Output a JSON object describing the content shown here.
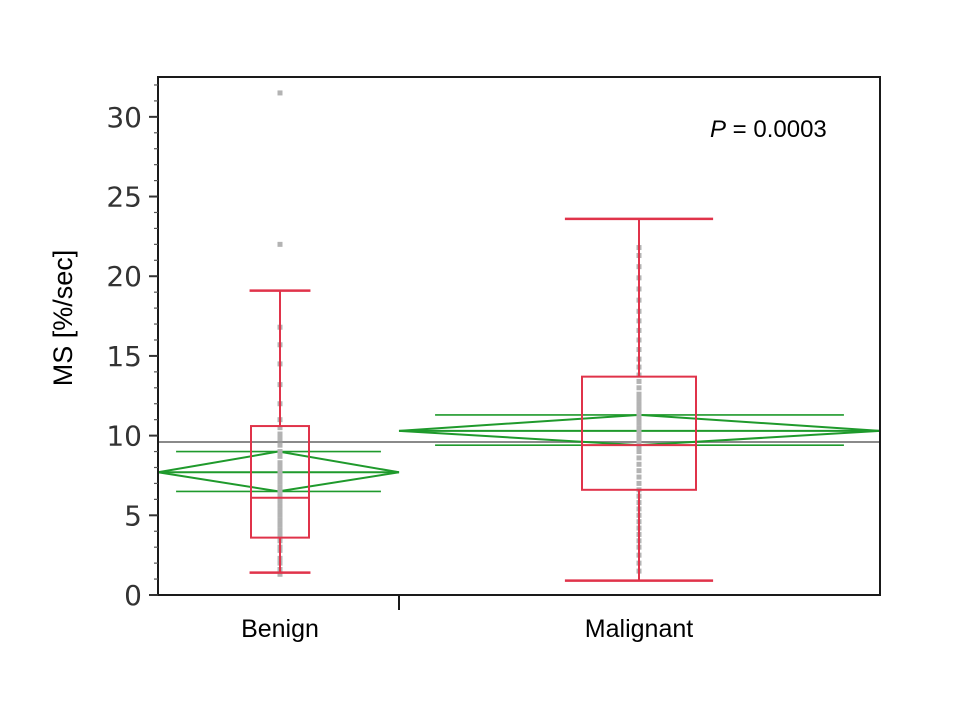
{
  "chart_data": {
    "type": "box",
    "title": "",
    "xlabel": "",
    "ylabel": "MS [%/sec]",
    "ylim": [
      0,
      32.5
    ],
    "yticks": [
      0,
      5,
      10,
      15,
      20,
      25,
      30
    ],
    "grand_mean": 9.6,
    "annotation": {
      "italic": "P",
      "rest": " = 0.0003"
    },
    "categories": [
      "Benign",
      "Malignant"
    ],
    "groups": [
      {
        "name": "Benign",
        "whisker_low": 1.4,
        "q1": 3.6,
        "median": 6.1,
        "q3": 10.6,
        "whisker_high": 19.1,
        "mean": 7.7,
        "ci_low": 6.5,
        "ci_high": 9.0,
        "points": [
          1.3,
          1.6,
          2.0,
          2.3,
          2.8,
          3.0,
          3.4,
          3.8,
          4.1,
          4.4,
          4.7,
          5.0,
          5.3,
          5.6,
          5.9,
          6.2,
          6.5,
          6.8,
          7.1,
          7.4,
          7.7,
          8.0,
          8.3,
          8.7,
          9.0,
          9.4,
          9.8,
          10.1,
          10.5,
          11.0,
          12.0,
          13.2,
          14.5,
          15.7,
          16.8,
          22.0,
          31.5
        ]
      },
      {
        "name": "Malignant",
        "whisker_low": 0.9,
        "q1": 6.6,
        "median": 9.4,
        "q3": 13.7,
        "whisker_high": 23.6,
        "mean": 10.3,
        "ci_low": 9.4,
        "ci_high": 11.3,
        "points": [
          1.5,
          2.0,
          2.5,
          3.0,
          3.4,
          3.8,
          4.2,
          4.6,
          5.0,
          5.4,
          5.8,
          6.2,
          6.6,
          7.0,
          7.4,
          7.8,
          8.2,
          8.6,
          9.0,
          9.3,
          9.6,
          9.9,
          10.2,
          10.5,
          10.8,
          11.1,
          11.4,
          11.7,
          12.0,
          12.3,
          12.6,
          13.0,
          13.4,
          13.8,
          14.3,
          14.8,
          15.4,
          16.0,
          16.6,
          17.2,
          17.8,
          18.5,
          19.2,
          19.9,
          20.6,
          21.3,
          21.8
        ]
      }
    ]
  }
}
